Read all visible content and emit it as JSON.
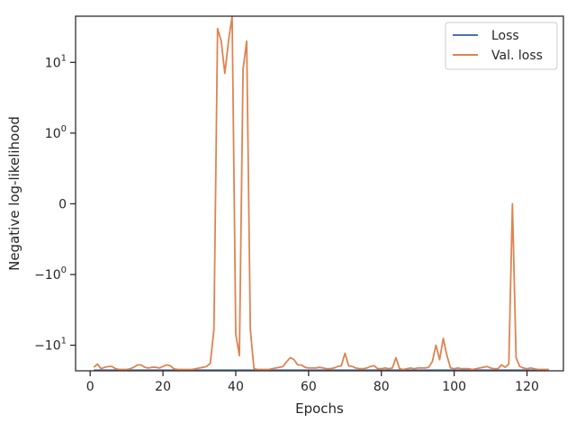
{
  "chart_data": {
    "type": "line",
    "title": "",
    "xlabel": "Epochs",
    "ylabel": "Negative log-likelihood",
    "yscale": "symlog",
    "xlim": [
      -4,
      130
    ],
    "ylim": [
      -23,
      45
    ],
    "grid": false,
    "legend_position": "top-right",
    "x_ticks": [
      {
        "value": 0,
        "label": "0"
      },
      {
        "value": 20,
        "label": "20"
      },
      {
        "value": 40,
        "label": "40"
      },
      {
        "value": 60,
        "label": "60"
      },
      {
        "value": 80,
        "label": "80"
      },
      {
        "value": 100,
        "label": "100"
      },
      {
        "value": 120,
        "label": "120"
      }
    ],
    "y_ticks": [
      {
        "value": 10,
        "base": "10",
        "exp": "1"
      },
      {
        "value": 1,
        "base": "10",
        "exp": "0"
      },
      {
        "value": 0,
        "base": "0",
        "exp": ""
      },
      {
        "value": -1,
        "base": "−10",
        "exp": "0"
      },
      {
        "value": -10,
        "base": "−10",
        "exp": "1"
      }
    ],
    "series": [
      {
        "name": "Loss",
        "color": "#4c72b0",
        "x": [
          1,
          126
        ],
        "y": [
          -22.5,
          -22.5
        ]
      },
      {
        "name": "Val. loss",
        "color": "#dd8452",
        "x": [
          1,
          2,
          3,
          4,
          5,
          6,
          7,
          8,
          9,
          10,
          11,
          12,
          13,
          14,
          15,
          16,
          17,
          18,
          19,
          20,
          21,
          22,
          23,
          24,
          25,
          26,
          27,
          28,
          29,
          30,
          31,
          32,
          33,
          34,
          35,
          36,
          37,
          38,
          39,
          40,
          41,
          42,
          43,
          44,
          45,
          46,
          47,
          48,
          49,
          50,
          51,
          52,
          53,
          54,
          55,
          56,
          57,
          58,
          59,
          60,
          61,
          62,
          63,
          64,
          65,
          66,
          67,
          68,
          69,
          70,
          71,
          72,
          73,
          74,
          75,
          76,
          77,
          78,
          79,
          80,
          81,
          82,
          83,
          84,
          85,
          86,
          87,
          88,
          89,
          90,
          91,
          92,
          93,
          94,
          95,
          96,
          97,
          98,
          99,
          100,
          101,
          102,
          103,
          104,
          105,
          106,
          107,
          108,
          109,
          110,
          111,
          112,
          113,
          114,
          115,
          116,
          117,
          118,
          119,
          120,
          121,
          122,
          123,
          124,
          125,
          126
        ],
        "y": [
          -20.5,
          -18.5,
          -21.5,
          -20.5,
          -20,
          -20,
          -21.5,
          -22,
          -22,
          -22,
          -21.5,
          -20.5,
          -19,
          -19,
          -20.5,
          -21,
          -20.5,
          -20.5,
          -21,
          -20,
          -19,
          -19.5,
          -21.5,
          -22,
          -22,
          -22,
          -22,
          -22,
          -21.5,
          -21,
          -20.5,
          -20,
          -18,
          -6,
          30,
          20,
          7,
          20,
          45,
          -7,
          -14,
          8,
          20,
          -6,
          -21.5,
          -22,
          -22,
          -22,
          -22,
          -21.5,
          -21,
          -20.5,
          -20,
          -17,
          -15,
          -16,
          -19,
          -19,
          -20.5,
          -21,
          -21,
          -21,
          -20.5,
          -21,
          -21.5,
          -21.5,
          -21,
          -20,
          -19.5,
          -13,
          -19.5,
          -20,
          -21,
          -21.5,
          -21.5,
          -21,
          -20,
          -19.5,
          -21.5,
          -21.5,
          -21,
          -21.5,
          -21,
          -15,
          -21.5,
          -22,
          -21.5,
          -21,
          -21.5,
          -21,
          -21,
          -21,
          -20.5,
          -17,
          -10,
          -16,
          -8,
          -14,
          -21,
          -21.5,
          -21,
          -21.5,
          -21.5,
          -21.5,
          -22,
          -21.5,
          -21,
          -20.5,
          -20,
          -21,
          -21.5,
          -21.5,
          -19,
          -20.5,
          -18.5,
          0,
          -15,
          -20,
          -21,
          -21.5,
          -21,
          -21.5,
          -22,
          -22,
          -22,
          -22
        ]
      }
    ]
  }
}
